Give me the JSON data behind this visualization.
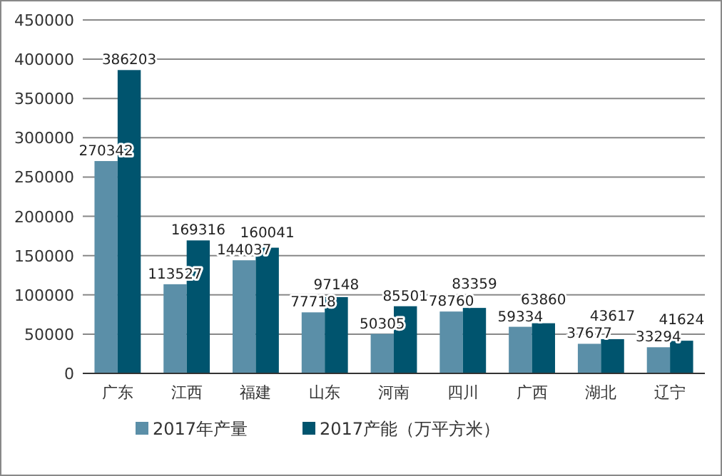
{
  "chart_data": {
    "type": "bar",
    "categories": [
      "广东",
      "江西",
      "福建",
      "山东",
      "河南",
      "四川",
      "广西",
      "湖北",
      "辽宁"
    ],
    "series": [
      {
        "name": "2017年产量",
        "color": "#5b8fa8",
        "values": [
          270342,
          113527,
          144037,
          77718,
          50305,
          78760,
          59334,
          37677,
          33294
        ]
      },
      {
        "name": "2017产能（万平方米）",
        "color": "#00546e",
        "values": [
          386203,
          169316,
          160041,
          97148,
          85501,
          83359,
          63860,
          43617,
          41624
        ]
      }
    ],
    "ylim": [
      0,
      450000
    ],
    "yticks": [
      0,
      50000,
      100000,
      150000,
      200000,
      250000,
      300000,
      350000,
      400000,
      450000
    ],
    "grid": "y",
    "legend": "bottom",
    "data_labels": true
  }
}
